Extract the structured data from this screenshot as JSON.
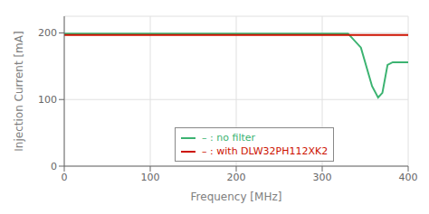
{
  "chart_data": {
    "type": "line",
    "title": "",
    "xlabel": "Frequency [MHz]",
    "ylabel": "Injection Current [mA]",
    "xlim": [
      0,
      400
    ],
    "ylim": [
      0,
      225
    ],
    "xticks": [
      0,
      100,
      200,
      300,
      400
    ],
    "yticks": [
      0,
      100,
      200
    ],
    "grid": true,
    "legend": "lower left",
    "series": [
      {
        "name": " – : no filter",
        "color": "#3cb371",
        "x": [
          0,
          330,
          345,
          358,
          365,
          370,
          376,
          382,
          400
        ],
        "values": [
          199,
          199,
          178,
          120,
          103,
          110,
          152,
          156,
          156
        ]
      },
      {
        "name": " – : with DLW32PH112XK2",
        "color": "#cc1100",
        "x": [
          0,
          400
        ],
        "values": [
          197,
          197
        ]
      }
    ]
  }
}
